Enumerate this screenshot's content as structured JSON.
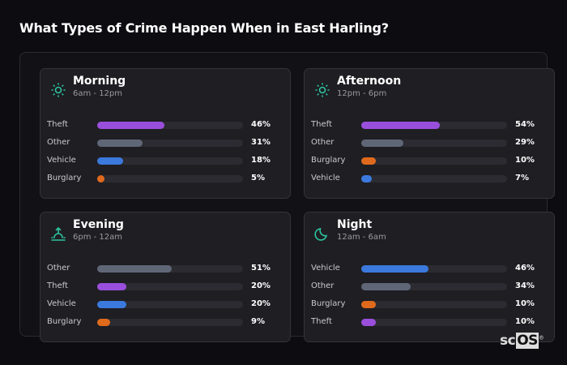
{
  "title": "What Types of Crime Happen When in East Harling?",
  "colors": {
    "Theft": "#9a4fdc",
    "Other": "#5f6777",
    "Vehicle": "#3b79dd",
    "Burglary": "#e06a1c",
    "icon": "#2ec4a0"
  },
  "chart_data": [
    {
      "type": "bar",
      "name": "Morning",
      "range": "6am - 12pm",
      "icon": "sun-icon",
      "categories": [
        "Theft",
        "Other",
        "Vehicle",
        "Burglary"
      ],
      "values": [
        46,
        31,
        18,
        5
      ],
      "labels": [
        "46%",
        "31%",
        "18%",
        "5%"
      ]
    },
    {
      "type": "bar",
      "name": "Afternoon",
      "range": "12pm - 6pm",
      "icon": "sun-icon",
      "categories": [
        "Theft",
        "Other",
        "Burglary",
        "Vehicle"
      ],
      "values": [
        54,
        29,
        10,
        7
      ],
      "labels": [
        "54%",
        "29%",
        "10%",
        "7%"
      ]
    },
    {
      "type": "bar",
      "name": "Evening",
      "range": "6pm - 12am",
      "icon": "sunset-icon",
      "categories": [
        "Other",
        "Theft",
        "Vehicle",
        "Burglary"
      ],
      "values": [
        51,
        20,
        20,
        9
      ],
      "labels": [
        "51%",
        "20%",
        "20%",
        "9%"
      ]
    },
    {
      "type": "bar",
      "name": "Night",
      "range": "12am - 6am",
      "icon": "moon-icon",
      "categories": [
        "Vehicle",
        "Other",
        "Burglary",
        "Theft"
      ],
      "values": [
        46,
        34,
        10,
        10
      ],
      "labels": [
        "46%",
        "34%",
        "10%",
        "10%"
      ]
    }
  ],
  "logo": {
    "text_a": "sc",
    "text_b": "OS",
    "mark": "®"
  }
}
